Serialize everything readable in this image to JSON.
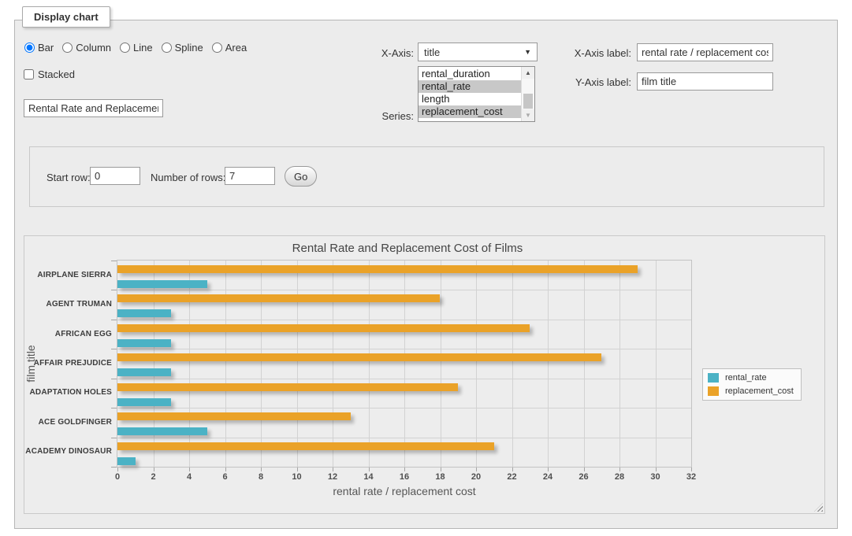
{
  "window": {
    "legend": "Display chart"
  },
  "form": {
    "chart_types": [
      {
        "label": "Bar",
        "selected": true
      },
      {
        "label": "Column",
        "selected": false
      },
      {
        "label": "Line",
        "selected": false
      },
      {
        "label": "Spline",
        "selected": false
      },
      {
        "label": "Area",
        "selected": false
      }
    ],
    "stacked": {
      "label": "Stacked",
      "checked": false
    },
    "chart_title_input": {
      "value": "Rental Rate and Replacement Cost of Films"
    },
    "x_axis": {
      "label": "X-Axis:",
      "selected": "title"
    },
    "series_picker": {
      "label": "Series:",
      "options": [
        {
          "label": "rental_duration",
          "selected": false
        },
        {
          "label": "rental_rate",
          "selected": true
        },
        {
          "label": "length",
          "selected": false
        },
        {
          "label": "replacement_cost",
          "selected": true
        }
      ]
    },
    "x_axis_label_field": {
      "label": "X-Axis label:",
      "value": "rental rate / replacement cost"
    },
    "y_axis_label_field": {
      "label": "Y-Axis label:",
      "value": "film title"
    }
  },
  "pagination": {
    "start_row": {
      "label": "Start row:",
      "value": "0"
    },
    "number_of_rows": {
      "label": "Number of rows:",
      "value": "7"
    },
    "go_label": "Go"
  },
  "icons": {
    "dropdown_arrow": "▼",
    "scroll_up_arrow": "▲",
    "scroll_down_arrow": "▼"
  },
  "chart_data": {
    "type": "bar",
    "orientation": "horizontal",
    "title": "Rental Rate and Replacement Cost of Films",
    "categories": [
      "AIRPLANE SIERRA",
      "AGENT TRUMAN",
      "AFRICAN EGG",
      "AFFAIR PREJUDICE",
      "ADAPTATION HOLES",
      "ACE GOLDFINGER",
      "ACADEMY DINOSAUR"
    ],
    "series": [
      {
        "name": "rental_rate",
        "color": "#4bb2c5",
        "values": [
          4.99,
          2.99,
          2.99,
          2.99,
          2.99,
          4.99,
          0.99
        ]
      },
      {
        "name": "replacement_cost",
        "color": "#EAA228",
        "values": [
          28.99,
          17.99,
          22.99,
          26.99,
          18.99,
          12.99,
          20.99
        ]
      }
    ],
    "xlabel": "rental rate / replacement cost",
    "ylabel": "film title",
    "xlim": [
      0,
      32
    ],
    "xticks": [
      0,
      2,
      4,
      6,
      8,
      10,
      12,
      14,
      16,
      18,
      20,
      22,
      24,
      26,
      28,
      30,
      32
    ],
    "grid": true,
    "legend_position": "right"
  }
}
